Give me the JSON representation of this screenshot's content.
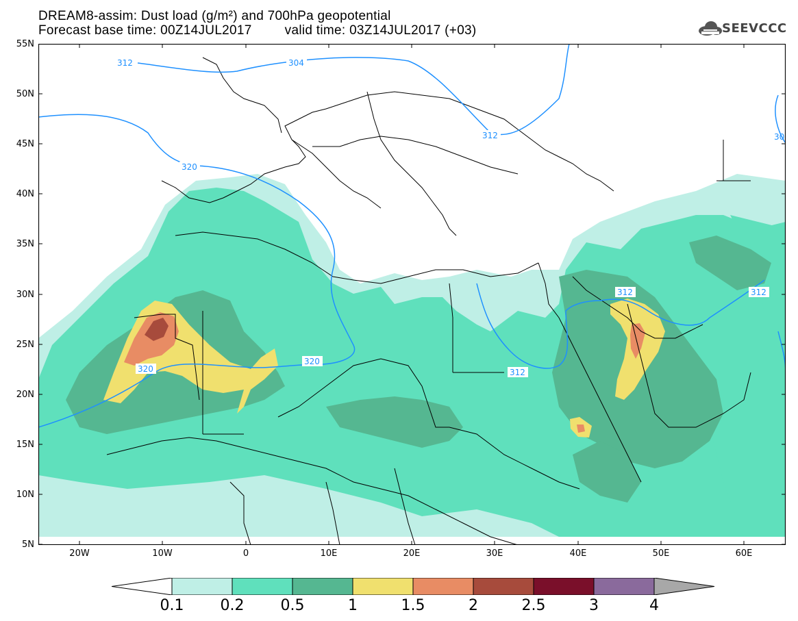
{
  "title": {
    "line1": "DREAM8-assim: Dust load (g/m²) and 700hPa geopotential",
    "base_time": "Forecast base time: 00Z14JUL2017",
    "valid_time": "valid time: 03Z14JUL2017 (+03)"
  },
  "logo": {
    "text": "SEEVCCC",
    "icon": "cloud-icon"
  },
  "axes": {
    "lat_labels": [
      "55N",
      "50N",
      "45N",
      "40N",
      "35N",
      "30N",
      "25N",
      "20N",
      "15N",
      "10N",
      "5N"
    ],
    "lon_labels": [
      "20W",
      "10W",
      "0",
      "10E",
      "20E",
      "30E",
      "40E",
      "50E",
      "60E"
    ]
  },
  "contours": [
    "312",
    "304",
    "312",
    "320",
    "320",
    "320",
    "312",
    "312",
    "312",
    "30"
  ],
  "colorbar": {
    "labels": [
      "0.1",
      "0.2",
      "0.5",
      "1",
      "1.5",
      "2",
      "2.5",
      "3",
      "4"
    ],
    "colors": [
      "#ffffff",
      "#bfefe6",
      "#5fe0bc",
      "#55b791",
      "#f0e06e",
      "#e88c64",
      "#a74b3c",
      "#7a0f2a",
      "#8a6a9c",
      "#a8a8a8"
    ]
  },
  "map_colors": {
    "ocean_land": "#ffffff",
    "level_01": "#bfefe6",
    "level_02": "#5fe0bc",
    "level_05": "#55b791",
    "level_1": "#f0e06e",
    "level_15": "#e88c64",
    "level_2": "#a74b3c",
    "geopotential_line": "#1e90ff",
    "border_line": "#000000"
  }
}
